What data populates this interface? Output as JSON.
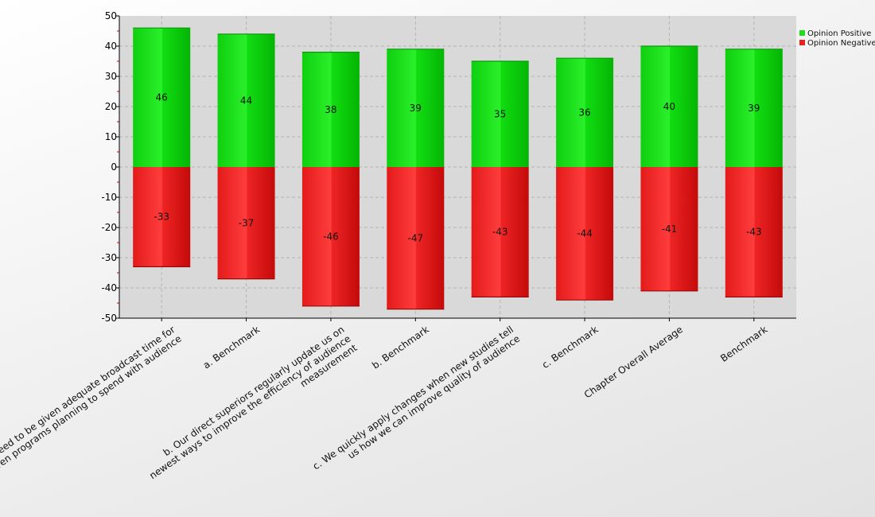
{
  "chart_data": {
    "type": "bar",
    "stacked": true,
    "categories": [
      "a. I feel we need to be given adequate broadcast time for children programs planning to spend with audience",
      "a. Benchmark",
      "b. Our direct superiors regularly update us on newest ways to improve the efficiency of audience measurement",
      "b. Benchmark",
      "c. We quickly apply changes when new studies tell us how we can improve quality of audience",
      "c. Benchmark",
      "Chapter Overall Average",
      "Benchmark"
    ],
    "category_lines": [
      [
        "a. I feel we need to be given adequate broadcast time for",
        "children programs planning to spend with audience"
      ],
      [
        "a. Benchmark"
      ],
      [
        "b. Our direct superiors regularly update us on",
        "newest ways to improve the efficiency of audience",
        "measurement"
      ],
      [
        "b. Benchmark"
      ],
      [
        "c. We quickly apply changes when new studies tell",
        "us how we can improve quality of audience"
      ],
      [
        "c. Benchmark"
      ],
      [
        "Chapter Overall Average"
      ],
      [
        "Benchmark"
      ]
    ],
    "series": [
      {
        "name": "Opinion Positive",
        "values": [
          46,
          44,
          38,
          39,
          35,
          36,
          40,
          39
        ],
        "color": "#1fdc1f"
      },
      {
        "name": "Opinion Negative",
        "values": [
          -33,
          -37,
          -46,
          -47,
          -43,
          -44,
          -41,
          -43
        ],
        "color": "#e82020"
      }
    ],
    "ylim": [
      -50,
      50
    ],
    "yticks": [
      50,
      40,
      30,
      20,
      10,
      0,
      -10,
      -20,
      -30,
      -40,
      -50
    ],
    "grid": true,
    "legend_position": "top-right"
  }
}
